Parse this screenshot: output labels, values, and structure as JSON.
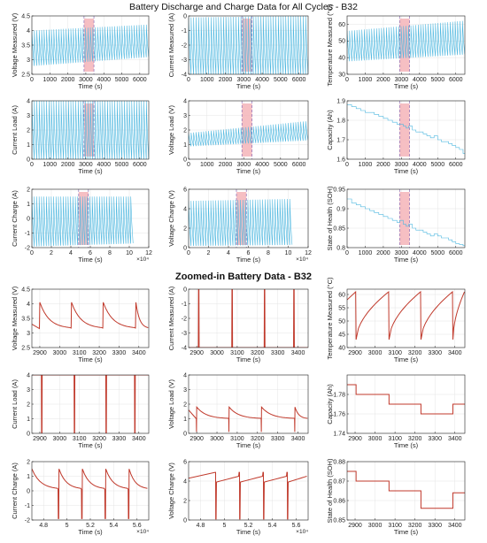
{
  "figure": {
    "title_top": "Battery Discharge and Charge Data for All Cycles - B32",
    "title_bottom": "Zoomed-in Battery Data - B32",
    "colors": {
      "overview_line": "#4fb8e0",
      "zoom_line": "#c0392b",
      "highlight": "#f4b4b8",
      "marker_line": "#8e6fb8",
      "axis": "#222222",
      "grid": "#e4e4e4"
    }
  },
  "chart_data": [
    {
      "id": "ov-vm",
      "type": "line",
      "section": "overview",
      "style": "dense_cycles",
      "xlabel": "Time (s)",
      "ylabel": "Voltage Measured (V)",
      "xlim": [
        0,
        6500
      ],
      "ylim": [
        2.5,
        4.5
      ],
      "xticks": [
        0,
        1000,
        2000,
        3000,
        4000,
        5000,
        6000
      ],
      "yticks": [
        2.5,
        3,
        3.5,
        4,
        4.5
      ],
      "cycles": 48,
      "low": [
        2.8,
        3.1
      ],
      "high": [
        4.0,
        4.2
      ],
      "highlight": [
        2900,
        3450
      ]
    },
    {
      "id": "ov-cm",
      "type": "line",
      "section": "overview",
      "style": "dense_cycles",
      "xlabel": "Time (s)",
      "ylabel": "Current Measured (A)",
      "xlim": [
        0,
        6500
      ],
      "ylim": [
        -4,
        0
      ],
      "xticks": [
        0,
        1000,
        2000,
        3000,
        4000,
        5000,
        6000
      ],
      "yticks": [
        -4,
        -3,
        -2,
        -1,
        0
      ],
      "cycles": 48,
      "low": [
        -4,
        -4
      ],
      "high": [
        -0.1,
        0
      ],
      "highlight": [
        2900,
        3450
      ]
    },
    {
      "id": "ov-tm",
      "type": "line",
      "section": "overview",
      "style": "dense_cycles",
      "xlabel": "Time (s)",
      "ylabel": "Temperature Measured (°C)",
      "xlim": [
        0,
        6500
      ],
      "ylim": [
        30,
        65
      ],
      "xticks": [
        0,
        1000,
        2000,
        3000,
        4000,
        5000,
        6000
      ],
      "yticks": [
        30,
        40,
        50,
        60
      ],
      "cycles": 48,
      "low": [
        38,
        42
      ],
      "high": [
        56,
        62
      ],
      "highlight": [
        2900,
        3450
      ]
    },
    {
      "id": "ov-cl",
      "type": "line",
      "section": "overview",
      "style": "dense_cycles",
      "xlabel": "Time (s)",
      "ylabel": "Current Load (A)",
      "xlim": [
        0,
        6500
      ],
      "ylim": [
        0,
        4
      ],
      "xticks": [
        0,
        1000,
        2000,
        3000,
        4000,
        5000,
        6000
      ],
      "yticks": [
        0,
        1,
        2,
        3,
        4
      ],
      "cycles": 48,
      "low": [
        0,
        0
      ],
      "high": [
        4,
        4
      ],
      "highlight": [
        2900,
        3450
      ]
    },
    {
      "id": "ov-vl",
      "type": "line",
      "section": "overview",
      "style": "dense_cycles",
      "xlabel": "Time (s)",
      "ylabel": "Voltage Load (V)",
      "xlim": [
        0,
        6500
      ],
      "ylim": [
        0,
        4
      ],
      "xticks": [
        0,
        1000,
        2000,
        3000,
        4000,
        5000,
        6000
      ],
      "yticks": [
        0,
        1,
        2,
        3,
        4
      ],
      "cycles": 48,
      "low": [
        0.9,
        1.3
      ],
      "high": [
        1.8,
        2.6
      ],
      "highlight": [
        2900,
        3450
      ]
    },
    {
      "id": "ov-cap",
      "type": "line",
      "section": "overview",
      "style": "stairs",
      "xlabel": "Time (s)",
      "ylabel": "Capacity (Ah)",
      "xlim": [
        0,
        6500
      ],
      "ylim": [
        1.6,
        1.9
      ],
      "xticks": [
        0,
        1000,
        2000,
        3000,
        4000,
        5000,
        6000
      ],
      "yticks": [
        1.6,
        1.7,
        1.8,
        1.9
      ],
      "x": [
        0,
        250,
        500,
        750,
        1000,
        1250,
        1500,
        1750,
        2000,
        2250,
        2500,
        2750,
        2900,
        3100,
        3250,
        3400,
        3600,
        3800,
        4000,
        4200,
        4400,
        4600,
        4800,
        5000,
        5200,
        5400,
        5600,
        5800,
        6000,
        6200,
        6400
      ],
      "y": [
        1.88,
        1.87,
        1.86,
        1.85,
        1.84,
        1.84,
        1.83,
        1.82,
        1.81,
        1.8,
        1.79,
        1.78,
        1.78,
        1.77,
        1.76,
        1.77,
        1.75,
        1.74,
        1.74,
        1.73,
        1.72,
        1.71,
        1.72,
        1.7,
        1.69,
        1.69,
        1.68,
        1.67,
        1.66,
        1.65,
        1.63
      ],
      "highlight": [
        2900,
        3450
      ]
    },
    {
      "id": "ov-cc",
      "type": "line",
      "section": "overview",
      "style": "dense_cycles",
      "xlabel": "Time (s)",
      "ylabel": "Current Charge (A)",
      "xlim": [
        0,
        120000
      ],
      "ylim": [
        -2,
        2
      ],
      "xticks": [
        0,
        20000,
        40000,
        60000,
        80000,
        100000,
        120000
      ],
      "xticklabels": [
        "0",
        "2",
        "4",
        "6",
        "8",
        "10",
        "12"
      ],
      "xexp": "×10⁴",
      "yticks": [
        -2,
        -1,
        0,
        1,
        2
      ],
      "cycles": 42,
      "data_xmax": 104000,
      "low": [
        -1.9,
        -1.7
      ],
      "high": [
        1.5,
        1.5
      ],
      "highlight": [
        48000,
        58000
      ]
    },
    {
      "id": "ov-vc",
      "type": "line",
      "section": "overview",
      "style": "dense_cycles",
      "xlabel": "Time (s)",
      "ylabel": "Voltage Charge (V)",
      "xlim": [
        0,
        120000
      ],
      "ylim": [
        0,
        6
      ],
      "xticks": [
        0,
        20000,
        40000,
        60000,
        80000,
        100000,
        120000
      ],
      "xticklabels": [
        "0",
        "2",
        "4",
        "6",
        "8",
        "10",
        "12"
      ],
      "xexp": "×10⁴",
      "yticks": [
        0,
        2,
        4,
        6
      ],
      "cycles": 42,
      "data_xmax": 104000,
      "low": [
        0.2,
        0.3
      ],
      "high": [
        4.8,
        5
      ],
      "highlight": [
        48000,
        58000
      ]
    },
    {
      "id": "ov-soh",
      "type": "line",
      "section": "overview",
      "style": "stairs",
      "xlabel": "Time (s)",
      "ylabel": "State of Health (SOH)",
      "xlim": [
        0,
        6500
      ],
      "ylim": [
        0.8,
        0.95
      ],
      "xticks": [
        0,
        1000,
        2000,
        3000,
        4000,
        5000,
        6000
      ],
      "yticks": [
        0.8,
        0.85,
        0.9,
        0.95
      ],
      "x": [
        0,
        250,
        500,
        750,
        1000,
        1250,
        1500,
        1750,
        2000,
        2250,
        2500,
        2750,
        2900,
        3100,
        3250,
        3400,
        3600,
        3800,
        4000,
        4200,
        4400,
        4600,
        4800,
        5000,
        5200,
        5400,
        5600,
        5800,
        6000,
        6200,
        6400
      ],
      "y": [
        0.925,
        0.915,
        0.91,
        0.905,
        0.9,
        0.895,
        0.89,
        0.885,
        0.88,
        0.875,
        0.87,
        0.865,
        0.87,
        0.86,
        0.855,
        0.86,
        0.85,
        0.845,
        0.845,
        0.84,
        0.835,
        0.83,
        0.835,
        0.83,
        0.825,
        0.825,
        0.82,
        0.815,
        0.81,
        0.808,
        0.805
      ],
      "highlight": [
        2900,
        3450
      ]
    },
    {
      "id": "zm-vm",
      "type": "line",
      "section": "zoom",
      "style": "decay_cycles",
      "xlabel": "Time (s)",
      "ylabel": "Voltage Measured (V)",
      "xlim": [
        2860,
        3450
      ],
      "ylim": [
        2.5,
        4.5
      ],
      "xticks": [
        2900,
        3000,
        3100,
        3200,
        3300,
        3400
      ],
      "yticks": [
        2.5,
        3,
        3.5,
        4,
        4.5
      ],
      "resets": [
        2900,
        3060,
        3220,
        3385
      ],
      "top": 4.05,
      "bottom": 3.15,
      "start_y": 3.3
    },
    {
      "id": "zm-cm",
      "type": "line",
      "section": "zoom",
      "style": "spikes",
      "xlabel": "Time (s)",
      "ylabel": "Current Measured (A)",
      "xlim": [
        2860,
        3450
      ],
      "ylim": [
        -4,
        0
      ],
      "xticks": [
        2900,
        3000,
        3100,
        3200,
        3300,
        3400
      ],
      "yticks": [
        -4,
        -3,
        -2,
        -1,
        0
      ],
      "spikes": [
        2910,
        3075,
        3235,
        3380
      ],
      "base": -4,
      "peak": 0
    },
    {
      "id": "zm-tm",
      "type": "line",
      "section": "zoom",
      "style": "rise_cycles",
      "xlabel": "Time (s)",
      "ylabel": "Temperature Measured (°C)",
      "xlim": [
        2860,
        3450
      ],
      "ylim": [
        40,
        62
      ],
      "xticks": [
        2900,
        3000,
        3100,
        3200,
        3300,
        3400
      ],
      "yticks": [
        40,
        45,
        50,
        55,
        60
      ],
      "resets": [
        2905,
        3070,
        3230,
        3390
      ],
      "low": 43,
      "high": 61,
      "start_y": 58
    },
    {
      "id": "zm-cl",
      "type": "line",
      "section": "zoom",
      "style": "spikes",
      "xlabel": "Time (s)",
      "ylabel": "Current Load (A)",
      "xlim": [
        2860,
        3450
      ],
      "ylim": [
        0,
        4
      ],
      "xticks": [
        2900,
        3000,
        3100,
        3200,
        3300,
        3400
      ],
      "yticks": [
        0,
        1,
        2,
        3,
        4
      ],
      "spikes": [
        2910,
        3075,
        3235,
        3380
      ],
      "base": 4,
      "peak": 0
    },
    {
      "id": "zm-vl",
      "type": "line",
      "section": "zoom",
      "style": "decay_cycles",
      "xlabel": "Time (s)",
      "ylabel": "Voltage Load (V)",
      "xlim": [
        2860,
        3450
      ],
      "ylim": [
        0,
        4
      ],
      "xticks": [
        2900,
        3000,
        3100,
        3200,
        3300,
        3400
      ],
      "yticks": [
        0,
        1,
        2,
        3,
        4
      ],
      "resets": [
        2900,
        3060,
        3220,
        3385
      ],
      "top": 1.8,
      "bottom": 1.0,
      "start_y": 1.6,
      "spike_to": 0.1
    },
    {
      "id": "zm-cap",
      "type": "line",
      "section": "zoom",
      "style": "stairs",
      "xlabel": "Time (s)",
      "ylabel": "Capacity (Ah)",
      "xlim": [
        2860,
        3450
      ],
      "ylim": [
        1.74,
        1.8
      ],
      "xticks": [
        2900,
        3000,
        3100,
        3200,
        3300,
        3400
      ],
      "yticks": [
        1.74,
        1.76,
        1.78
      ],
      "x": [
        2860,
        2905,
        3070,
        3230,
        3390,
        3450
      ],
      "y": [
        1.79,
        1.78,
        1.77,
        1.76,
        1.77,
        1.77
      ]
    },
    {
      "id": "zm-cc",
      "type": "line",
      "section": "zoom",
      "style": "charge_cycles",
      "xlabel": "Time (s)",
      "ylabel": "Current Charge (A)",
      "xlim": [
        47000,
        57000
      ],
      "ylim": [
        -2,
        2
      ],
      "xticks": [
        48000,
        50000,
        52000,
        54000,
        56000
      ],
      "xticklabels": [
        "4.8",
        "5",
        "5.2",
        "5.4",
        "5.6"
      ],
      "xexp": "×10⁴",
      "yticks": [
        -2,
        -1,
        0,
        1,
        2
      ],
      "resets": [
        49300,
        51300,
        53300,
        55300
      ],
      "top": 1.5,
      "settle": 0.1,
      "dip": -1.9
    },
    {
      "id": "zm-vc",
      "type": "line",
      "section": "zoom",
      "style": "vcharge_cycles",
      "xlabel": "Time (s)",
      "ylabel": "Voltage Charge (V)",
      "xlim": [
        47000,
        57000
      ],
      "ylim": [
        0,
        6
      ],
      "xticks": [
        48000,
        50000,
        52000,
        54000,
        56000
      ],
      "xticklabels": [
        "4.8",
        "5",
        "5.2",
        "5.4",
        "5.6"
      ],
      "xexp": "×10⁴",
      "yticks": [
        0,
        2,
        4,
        6
      ],
      "resets": [
        49300,
        51300,
        53300,
        55300
      ],
      "top": 4.9,
      "plateau": 4.3,
      "dip": 0.1
    },
    {
      "id": "zm-soh",
      "type": "line",
      "section": "zoom",
      "style": "stairs",
      "xlabel": "Time (s)",
      "ylabel": "State of Health (SOH)",
      "xlim": [
        2860,
        3450
      ],
      "ylim": [
        0.85,
        0.88
      ],
      "xticks": [
        2900,
        3000,
        3100,
        3200,
        3300,
        3400
      ],
      "yticks": [
        0.85,
        0.86,
        0.87,
        0.88
      ],
      "x": [
        2860,
        2905,
        3070,
        3230,
        3390,
        3450
      ],
      "y": [
        0.875,
        0.87,
        0.865,
        0.856,
        0.864,
        0.864
      ]
    }
  ]
}
